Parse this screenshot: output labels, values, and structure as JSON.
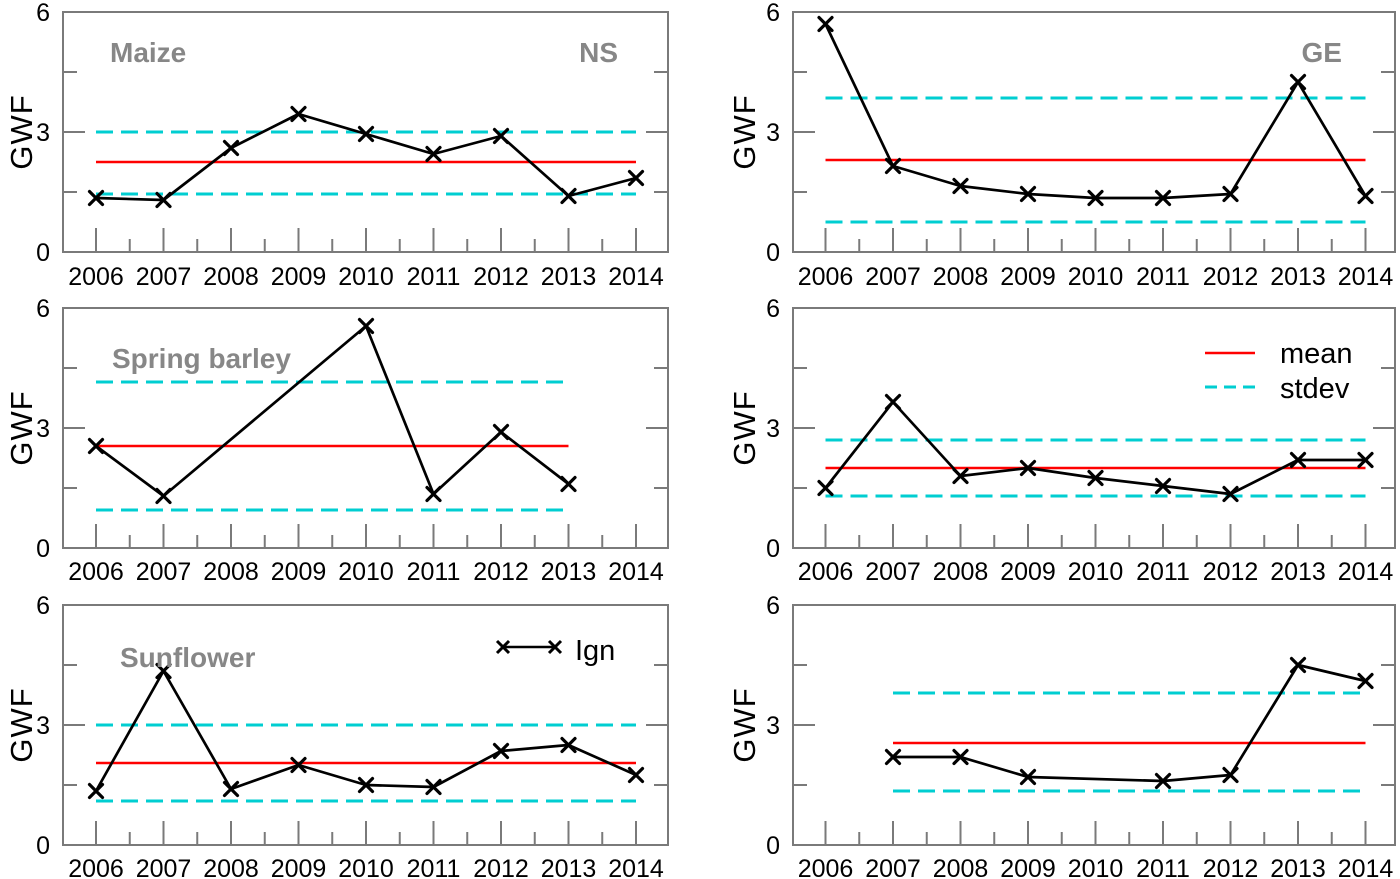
{
  "figure": {
    "background": "#ffffff",
    "ylabel": "GWF",
    "ylim": [
      0,
      6
    ],
    "yticks": [
      0,
      3,
      6
    ],
    "y_minor_ticks": [
      1.5,
      4.5
    ],
    "x_years": [
      2006,
      2007,
      2008,
      2009,
      2010,
      2011,
      2012,
      2013,
      2014
    ],
    "legend": {
      "mean_label": "mean",
      "stdev_label": "stdev",
      "series_label": "Ign"
    },
    "colors": {
      "series": "#000000",
      "mean": "#ff0000",
      "stdev": "#00ced1",
      "axis": "#7a7a7a",
      "crop_label": "#878787",
      "tick_label": "#000000"
    }
  },
  "chart_data": [
    {
      "id": "maize-ns",
      "type": "line",
      "crop_label": "Maize",
      "region_label": "NS",
      "ylabel": "GWF",
      "ylim": [
        0,
        6
      ],
      "yticks": [
        0,
        3,
        6
      ],
      "x": [
        2006,
        2007,
        2008,
        2009,
        2010,
        2011,
        2012,
        2013,
        2014
      ],
      "series": [
        {
          "name": "Ign",
          "values": [
            1.35,
            1.3,
            2.6,
            3.45,
            2.95,
            2.45,
            2.9,
            1.4,
            1.85
          ]
        }
      ],
      "mean": 2.25,
      "stdev_band": [
        1.45,
        3.0
      ],
      "legend": null
    },
    {
      "id": "maize-ge",
      "type": "line",
      "crop_label": null,
      "region_label": "GE",
      "ylabel": "GWF",
      "ylim": [
        0,
        6
      ],
      "yticks": [
        0,
        3,
        6
      ],
      "x": [
        2006,
        2007,
        2008,
        2009,
        2010,
        2011,
        2012,
        2013,
        2014
      ],
      "series": [
        {
          "name": "Ign",
          "values": [
            5.7,
            2.15,
            1.65,
            1.45,
            1.35,
            1.35,
            1.45,
            4.25,
            1.4
          ]
        }
      ],
      "mean": 2.3,
      "stdev_band": [
        0.75,
        3.85
      ],
      "legend": null
    },
    {
      "id": "spring-barley-ns",
      "type": "line",
      "crop_label": "Spring barley",
      "region_label": null,
      "ylabel": "GWF",
      "ylim": [
        0,
        6
      ],
      "yticks": [
        0,
        3,
        6
      ],
      "x": [
        2006,
        2007,
        2008,
        2009,
        2010,
        2011,
        2012,
        2013,
        2014
      ],
      "series": [
        {
          "name": "Ign",
          "values": [
            2.55,
            1.3,
            null,
            null,
            5.55,
            1.35,
            2.9,
            1.6,
            null
          ]
        }
      ],
      "mean": 2.55,
      "stdev_band": [
        0.95,
        4.15
      ],
      "legend": null
    },
    {
      "id": "spring-barley-ge",
      "type": "line",
      "crop_label": null,
      "region_label": null,
      "ylabel": "GWF",
      "ylim": [
        0,
        6
      ],
      "yticks": [
        0,
        3,
        6
      ],
      "x": [
        2006,
        2007,
        2008,
        2009,
        2010,
        2011,
        2012,
        2013,
        2014
      ],
      "series": [
        {
          "name": "Ign",
          "values": [
            1.5,
            3.65,
            1.8,
            2.0,
            1.75,
            1.55,
            1.35,
            2.2,
            2.2
          ]
        }
      ],
      "mean": 2.0,
      "stdev_band": [
        1.3,
        2.7
      ],
      "legend": "mean-stdev"
    },
    {
      "id": "sunflower-ns",
      "type": "line",
      "crop_label": "Sunflower",
      "region_label": null,
      "ylabel": "GWF",
      "ylim": [
        0,
        6
      ],
      "yticks": [
        0,
        3,
        6
      ],
      "x": [
        2006,
        2007,
        2008,
        2009,
        2010,
        2011,
        2012,
        2013,
        2014
      ],
      "series": [
        {
          "name": "Ign",
          "values": [
            1.35,
            4.35,
            1.4,
            2.0,
            1.5,
            1.45,
            2.35,
            2.5,
            1.75
          ]
        }
      ],
      "mean": 2.05,
      "stdev_band": [
        1.1,
        3.0
      ],
      "legend": "series"
    },
    {
      "id": "sunflower-ge",
      "type": "line",
      "crop_label": null,
      "region_label": null,
      "ylabel": "GWF",
      "ylim": [
        0,
        6
      ],
      "yticks": [
        0,
        3,
        6
      ],
      "x": [
        2006,
        2007,
        2008,
        2009,
        2010,
        2011,
        2012,
        2013,
        2014
      ],
      "series": [
        {
          "name": "Ign",
          "values": [
            null,
            2.2,
            2.2,
            1.7,
            null,
            1.6,
            1.75,
            4.5,
            4.1
          ]
        }
      ],
      "mean": 2.55,
      "stdev_band": [
        1.35,
        3.8
      ],
      "legend": null
    }
  ]
}
